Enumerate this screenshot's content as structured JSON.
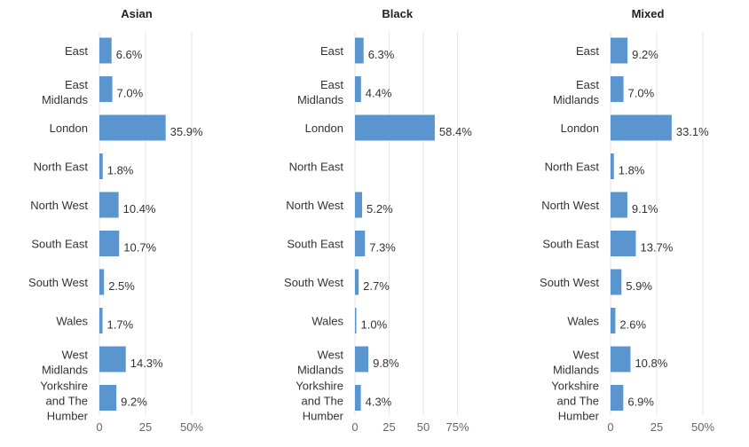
{
  "colors": {
    "bar": "#5b95cf",
    "grid": "#e6e6e6",
    "text": "#333333",
    "tick": "#666666"
  },
  "chart_data": [
    {
      "type": "bar",
      "orientation": "horizontal",
      "title": "Asian",
      "categories": [
        "East",
        "East Midlands",
        "London",
        "North East",
        "North West",
        "South East",
        "South West",
        "Wales",
        "West Midlands",
        "Yorkshire and The Humber"
      ],
      "values": [
        6.6,
        7.0,
        35.9,
        1.8,
        10.4,
        10.7,
        2.5,
        1.7,
        14.3,
        9.2
      ],
      "value_labels": [
        "6.6%",
        "7.0%",
        "35.9%",
        "1.8%",
        "10.4%",
        "10.7%",
        "2.5%",
        "1.7%",
        "14.3%",
        "9.2%"
      ],
      "xlim": [
        0,
        50
      ],
      "xticks": [
        0,
        25,
        50
      ],
      "xtick_labels": [
        "0",
        "25",
        "50%"
      ],
      "grid": true
    },
    {
      "type": "bar",
      "orientation": "horizontal",
      "title": "Black",
      "categories": [
        "East",
        "East Midlands",
        "London",
        "North East",
        "North West",
        "South East",
        "South West",
        "Wales",
        "West Midlands",
        "Yorkshire and The Humber"
      ],
      "values": [
        6.3,
        4.4,
        58.4,
        null,
        5.2,
        7.3,
        2.7,
        1.0,
        9.8,
        4.3
      ],
      "value_labels": [
        "6.3%",
        "4.4%",
        "58.4%",
        "",
        "5.2%",
        "7.3%",
        "2.7%",
        "1.0%",
        "9.8%",
        "4.3%"
      ],
      "xlim": [
        0,
        75
      ],
      "xticks": [
        0,
        25,
        50,
        75
      ],
      "xtick_labels": [
        "0",
        "25",
        "50",
        "75%"
      ],
      "grid": true
    },
    {
      "type": "bar",
      "orientation": "horizontal",
      "title": "Mixed",
      "categories": [
        "East",
        "East Midlands",
        "London",
        "North East",
        "North West",
        "South East",
        "South West",
        "Wales",
        "West Midlands",
        "Yorkshire and The Humber"
      ],
      "values": [
        9.2,
        7.0,
        33.1,
        1.8,
        9.1,
        13.7,
        5.9,
        2.6,
        10.8,
        6.9
      ],
      "value_labels": [
        "9.2%",
        "7.0%",
        "33.1%",
        "1.8%",
        "9.1%",
        "13.7%",
        "5.9%",
        "2.6%",
        "10.8%",
        "6.9%"
      ],
      "xlim": [
        0,
        50
      ],
      "xticks": [
        0,
        25,
        50
      ],
      "xtick_labels": [
        "0",
        "25",
        "50%"
      ],
      "grid": true
    }
  ]
}
